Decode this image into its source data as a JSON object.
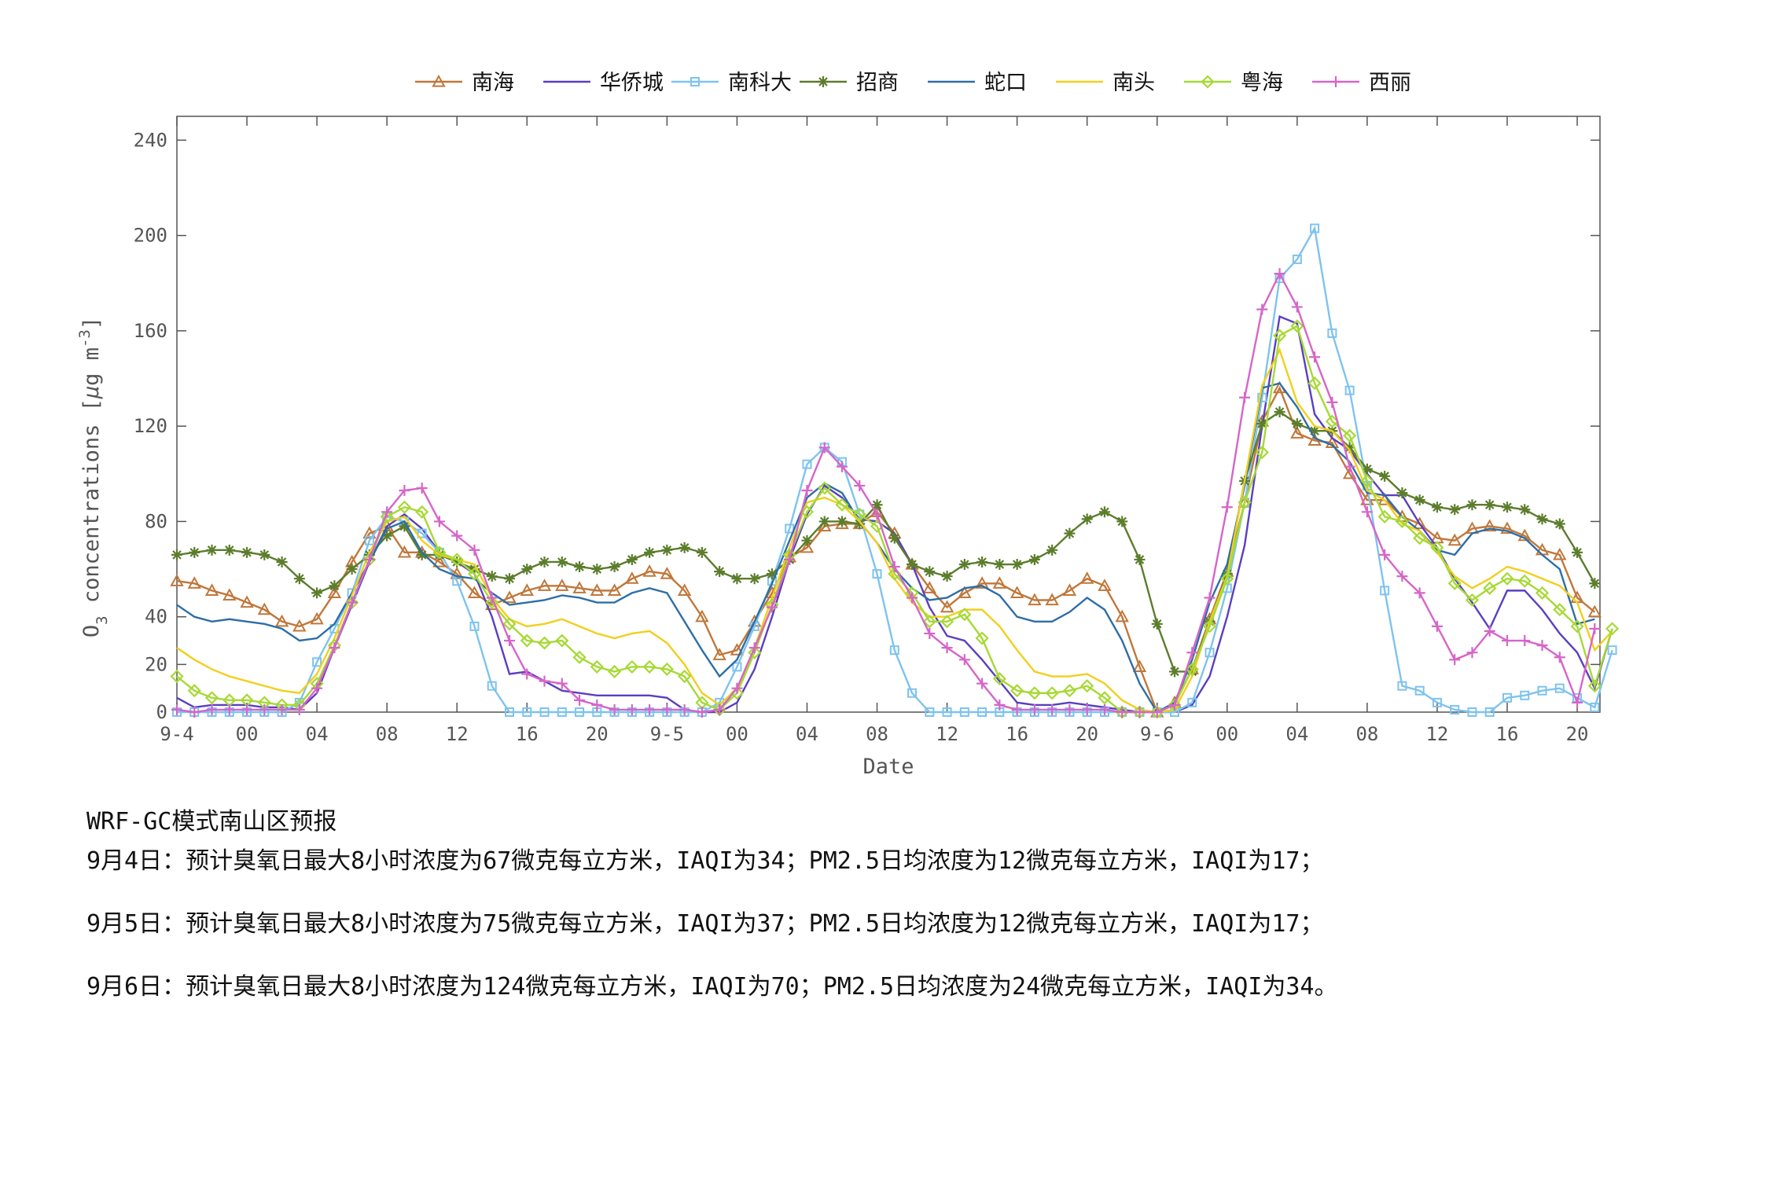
{
  "chart_data": {
    "type": "line",
    "xlabel": "Date",
    "ylabel": "O3 concentrations [μg m-3]",
    "ylabel_parts": [
      "O",
      "3",
      " concentrations [",
      "μ",
      "g m",
      "-3",
      "]"
    ],
    "ylim": [
      0,
      250
    ],
    "yticks": [
      0,
      20,
      40,
      80,
      120,
      160,
      200,
      240
    ],
    "xlim": [
      0,
      78
    ],
    "x_ticks": [
      {
        "x": 0,
        "label": "9-4"
      },
      {
        "x": 4,
        "label": "00"
      },
      {
        "x": 8,
        "label": "04"
      },
      {
        "x": 12,
        "label": "08"
      },
      {
        "x": 16,
        "label": "12"
      },
      {
        "x": 20,
        "label": "16"
      },
      {
        "x": 24,
        "label": "20"
      },
      {
        "x": 28,
        "label": "9-5"
      },
      {
        "x": 32,
        "label": "00"
      },
      {
        "x": 36,
        "label": "04"
      },
      {
        "x": 40,
        "label": "08"
      },
      {
        "x": 44,
        "label": "12"
      },
      {
        "x": 48,
        "label": "16"
      },
      {
        "x": 52,
        "label": "20"
      },
      {
        "x": 56,
        "label": "9-6"
      },
      {
        "x": 60,
        "label": "00"
      },
      {
        "x": 64,
        "label": "04"
      },
      {
        "x": 68,
        "label": "08"
      },
      {
        "x": 72,
        "label": "12"
      },
      {
        "x": 76,
        "label": "16"
      },
      {
        "x": 80,
        "label": "20"
      }
    ],
    "x_note": "x index = hourly step; the plotted series span indices 0–78 on a 20-unit-wide axis segment per 20 hours",
    "grid": false,
    "legend_position": "top-center",
    "series": [
      {
        "name": "南海",
        "color": "#c0773a",
        "marker": "triangle",
        "values": [
          55,
          54,
          51,
          49,
          46,
          43,
          38,
          36,
          39,
          50,
          63,
          75,
          78,
          67,
          67,
          63,
          58,
          50,
          45,
          48,
          51,
          53,
          53,
          52,
          51,
          51,
          56,
          59,
          58,
          51,
          40,
          24,
          26,
          38,
          50,
          65,
          69,
          78,
          79,
          79,
          84,
          75,
          62,
          52,
          44,
          50,
          54,
          54,
          50,
          47,
          47,
          51,
          56,
          53,
          40,
          19,
          0,
          4,
          18,
          39,
          59,
          88,
          122,
          136,
          117,
          114,
          113,
          100,
          89,
          89,
          82,
          79,
          73,
          72,
          77,
          78,
          77,
          74,
          68,
          66,
          48,
          42
        ]
      },
      {
        "name": "华侨城",
        "color": "#5a3fc0",
        "marker": "none",
        "values": [
          6,
          2,
          3,
          3,
          3,
          2,
          2,
          1,
          8,
          27,
          45,
          63,
          78,
          83,
          77,
          67,
          63,
          58,
          40,
          16,
          17,
          13,
          9,
          8,
          7,
          7,
          7,
          7,
          6,
          1,
          0,
          0,
          4,
          18,
          40,
          64,
          83,
          95,
          90,
          81,
          80,
          75,
          62,
          44,
          32,
          30,
          22,
          13,
          4,
          3,
          3,
          4,
          3,
          2,
          1,
          0,
          0,
          0,
          3,
          15,
          40,
          70,
          120,
          166,
          163,
          125,
          115,
          110,
          100,
          91,
          91,
          79,
          69,
          56,
          46,
          35,
          51,
          51,
          43,
          33,
          25,
          10,
          35
        ]
      },
      {
        "name": "南科大",
        "color": "#7ec3ef",
        "marker": "square",
        "values": [
          0,
          0,
          0,
          0,
          0,
          0,
          0,
          4,
          21,
          35,
          50,
          72,
          82,
          80,
          75,
          67,
          55,
          36,
          11,
          0,
          0,
          0,
          0,
          0,
          0,
          0,
          0,
          0,
          0,
          0,
          0,
          4,
          19,
          36,
          55,
          77,
          104,
          111,
          105,
          83,
          58,
          26,
          8,
          0,
          0,
          0,
          0,
          0,
          0,
          0,
          0,
          0,
          0,
          0,
          0,
          0,
          0,
          0,
          4,
          25,
          52,
          88,
          132,
          182,
          190,
          203,
          159,
          135,
          95,
          51,
          11,
          9,
          4,
          1,
          0,
          0,
          6,
          7,
          9,
          10,
          6,
          2,
          26
        ]
      },
      {
        "name": "招商",
        "color": "#5c7d2c",
        "marker": "asterisk",
        "values": [
          66,
          67,
          68,
          68,
          67,
          66,
          63,
          56,
          50,
          53,
          60,
          66,
          74,
          78,
          66,
          66,
          63,
          60,
          57,
          56,
          60,
          63,
          63,
          61,
          60,
          61,
          64,
          67,
          68,
          69,
          67,
          59,
          56,
          56,
          58,
          64,
          72,
          80,
          80,
          79,
          87,
          73,
          62,
          59,
          57,
          62,
          63,
          62,
          62,
          64,
          68,
          75,
          81,
          84,
          80,
          64,
          37,
          17,
          17,
          38,
          58,
          97,
          121,
          126,
          121,
          118,
          118,
          111,
          102,
          99,
          92,
          89,
          86,
          85,
          87,
          87,
          86,
          85,
          81,
          79,
          67,
          54
        ]
      },
      {
        "name": "蛇口",
        "color": "#2e6ea6",
        "marker": "none",
        "values": [
          45,
          40,
          38,
          39,
          38,
          37,
          35,
          30,
          31,
          37,
          50,
          63,
          77,
          80,
          67,
          60,
          57,
          56,
          50,
          45,
          46,
          47,
          49,
          48,
          46,
          46,
          50,
          52,
          50,
          38,
          26,
          15,
          22,
          38,
          54,
          72,
          90,
          96,
          92,
          80,
          71,
          60,
          52,
          47,
          48,
          52,
          53,
          49,
          40,
          38,
          38,
          42,
          48,
          43,
          30,
          12,
          0,
          4,
          22,
          46,
          62,
          95,
          136,
          138,
          128,
          115,
          112,
          105,
          92,
          91,
          82,
          76,
          68,
          66,
          75,
          77,
          76,
          73,
          66,
          60,
          37,
          39
        ]
      },
      {
        "name": "南头",
        "color": "#f2cf1d",
        "marker": "none",
        "values": [
          27,
          22,
          18,
          15,
          13,
          11,
          9,
          8,
          16,
          31,
          49,
          67,
          80,
          82,
          72,
          66,
          64,
          62,
          48,
          39,
          36,
          37,
          39,
          36,
          33,
          31,
          33,
          34,
          29,
          20,
          8,
          3,
          10,
          27,
          48,
          69,
          88,
          90,
          87,
          80,
          71,
          56,
          46,
          40,
          40,
          43,
          43,
          36,
          26,
          17,
          15,
          15,
          16,
          12,
          5,
          1,
          0,
          1,
          15,
          38,
          57,
          97,
          137,
          152,
          130,
          120,
          118,
          110,
          93,
          89,
          79,
          76,
          67,
          57,
          52,
          56,
          61,
          59,
          56,
          53,
          46,
          26,
          34
        ]
      },
      {
        "name": "粤海",
        "color": "#a6d934",
        "marker": "diamond",
        "values": [
          15,
          9,
          6,
          5,
          5,
          4,
          3,
          3,
          12,
          28,
          46,
          64,
          82,
          86,
          84,
          67,
          64,
          58,
          46,
          37,
          30,
          29,
          30,
          23,
          19,
          17,
          19,
          19,
          18,
          15,
          4,
          1,
          8,
          25,
          45,
          66,
          84,
          94,
          87,
          83,
          78,
          58,
          50,
          38,
          38,
          41,
          31,
          14,
          9,
          8,
          8,
          9,
          11,
          6,
          0,
          0,
          0,
          3,
          18,
          36,
          56,
          88,
          109,
          158,
          162,
          138,
          122,
          116,
          97,
          82,
          80,
          73,
          69,
          54,
          47,
          52,
          56,
          55,
          50,
          43,
          36,
          11,
          35
        ]
      },
      {
        "name": "西丽",
        "color": "#d665c9",
        "marker": "plus",
        "values": [
          1,
          0,
          1,
          1,
          1,
          1,
          1,
          1,
          10,
          27,
          46,
          64,
          84,
          93,
          94,
          80,
          74,
          68,
          48,
          30,
          16,
          13,
          12,
          5,
          3,
          1,
          1,
          1,
          1,
          1,
          0,
          1,
          10,
          27,
          44,
          64,
          93,
          111,
          103,
          95,
          83,
          61,
          48,
          33,
          27,
          22,
          12,
          3,
          1,
          1,
          1,
          1,
          1,
          1,
          0,
          0,
          0,
          3,
          25,
          48,
          86,
          132,
          169,
          184,
          170,
          149,
          130,
          103,
          84,
          66,
          57,
          50,
          36,
          22,
          25,
          34,
          30,
          30,
          28,
          23,
          4,
          35
        ]
      }
    ]
  },
  "forecast": {
    "heading": "WRF-GC模式南山区预报",
    "lines": [
      "9月4日：预计臭氧日最大8小时浓度为67微克每立方米，IAQI为34；PM2.5日均浓度为12微克每立方米，IAQI为17；",
      "9月5日：预计臭氧日最大8小时浓度为75微克每立方米，IAQI为37；PM2.5日均浓度为12微克每立方米，IAQI为17；",
      "9月6日：预计臭氧日最大8小时浓度为124微克每立方米，IAQI为70；PM2.5日均浓度为24微克每立方米，IAQI为34。"
    ]
  }
}
